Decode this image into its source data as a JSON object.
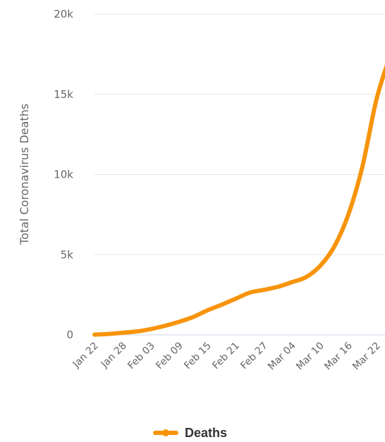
{
  "chart_data": {
    "type": "line",
    "ylabel": "Total Coronavirus Deaths",
    "xlabel": "",
    "ylim": [
      0,
      20000
    ],
    "yticks": [
      0,
      5000,
      10000,
      15000,
      20000
    ],
    "ytick_labels": [
      "0",
      "5k",
      "10k",
      "15k",
      "20k"
    ],
    "x": [
      "Jan 22",
      "Jan 25",
      "Jan 28",
      "Jan 31",
      "Feb 03",
      "Feb 06",
      "Feb 09",
      "Feb 12",
      "Feb 15",
      "Feb 18",
      "Feb 21",
      "Feb 24",
      "Feb 27",
      "Mar 01",
      "Mar 04",
      "Mar 07",
      "Mar 10",
      "Mar 13",
      "Mar 16",
      "Mar 19",
      "Mar 22",
      "Mar 23"
    ],
    "xtick_labels": [
      "Jan 22",
      "Jan 28",
      "Feb 03",
      "Feb 09",
      "Feb 15",
      "Feb 21",
      "Feb 27",
      "Mar 04",
      "Mar 10",
      "Mar 16",
      "Mar 22"
    ],
    "grid": true,
    "legend_position": "bottom-center",
    "series": [
      {
        "name": "Deaths",
        "color": "#f7940c",
        "values": [
          17,
          56,
          132,
          213,
          362,
          565,
          813,
          1113,
          1526,
          1873,
          2247,
          2629,
          2804,
          2996,
          3285,
          3600,
          4300,
          5500,
          7500,
          10500,
          14700,
          17500
        ]
      }
    ]
  }
}
